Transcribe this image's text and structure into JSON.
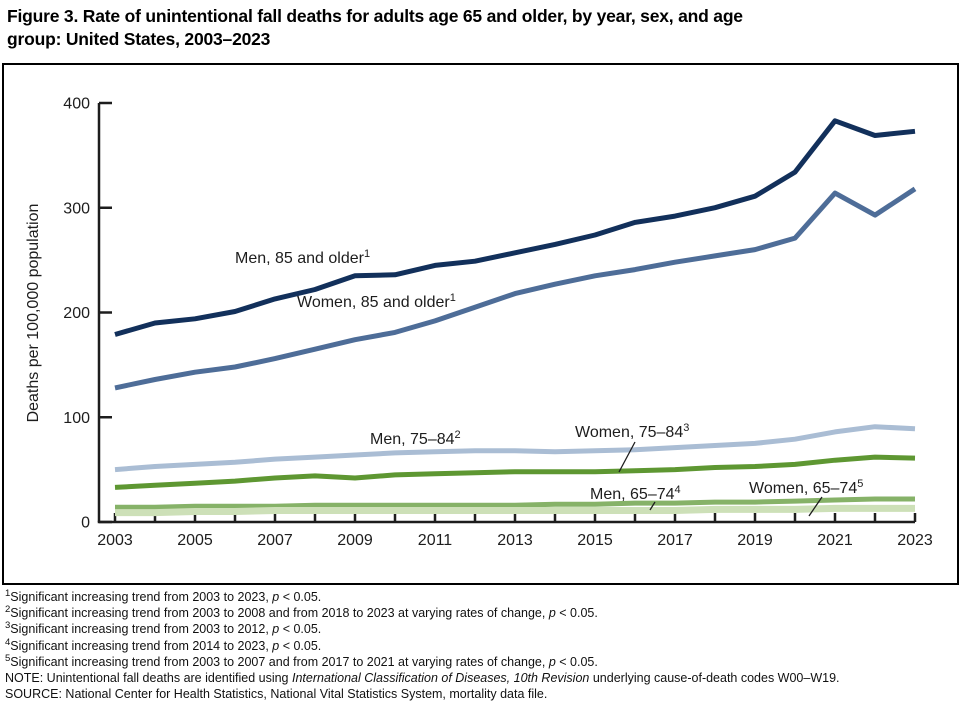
{
  "title_lines": [
    "Figure 3. Rate of unintentional fall deaths for adults age 65 and older, by year, sex, and age",
    "group: United States, 2003–2023"
  ],
  "chart_data": {
    "type": "line",
    "title": "Rate of unintentional fall deaths for adults age 65 and older, by year, sex, and age group: United States, 2003–2023",
    "xlabel": "",
    "ylabel": "Deaths per 100,000 population",
    "ylim": [
      0,
      400
    ],
    "yticks": [
      0,
      100,
      200,
      300,
      400
    ],
    "grid": false,
    "legend_position": "inline-labels",
    "x": [
      2003,
      2004,
      2005,
      2006,
      2007,
      2008,
      2009,
      2010,
      2011,
      2012,
      2013,
      2014,
      2015,
      2016,
      2017,
      2018,
      2019,
      2020,
      2021,
      2022,
      2023
    ],
    "xtick_label_years": [
      2003,
      2005,
      2007,
      2009,
      2011,
      2013,
      2015,
      2017,
      2019,
      2021,
      2023
    ],
    "axis_color": "#1d1d1d",
    "series": [
      {
        "name": "Men, 85 and older",
        "sup": "1",
        "color": "#12305b",
        "values": [
          179,
          190,
          194,
          201,
          213,
          222,
          235,
          236,
          245,
          249,
          257,
          265,
          274,
          286,
          292,
          300,
          311,
          334,
          383,
          369,
          373
        ]
      },
      {
        "name": "Women, 85 and older",
        "sup": "1",
        "color": "#4e6d98",
        "values": [
          128,
          136,
          143,
          148,
          156,
          165,
          174,
          181,
          192,
          205,
          218,
          227,
          235,
          241,
          248,
          254,
          260,
          271,
          314,
          293,
          318
        ]
      },
      {
        "name": "Men, 75–84",
        "sup": "2",
        "color": "#aabdd4",
        "values": [
          50,
          53,
          55,
          57,
          60,
          62,
          64,
          66,
          67,
          68,
          68,
          67,
          68,
          69,
          71,
          73,
          75,
          79,
          86,
          91,
          89
        ]
      },
      {
        "name": "Women, 75–84",
        "sup": "3",
        "color": "#5e9732",
        "values": [
          33,
          35,
          37,
          39,
          42,
          44,
          42,
          45,
          46,
          47,
          48,
          48,
          48,
          49,
          50,
          52,
          53,
          55,
          59,
          62,
          61
        ]
      },
      {
        "name": "Men, 65–74",
        "sup": "4",
        "color": "#86b268",
        "values": [
          14,
          14,
          15,
          15,
          15,
          16,
          16,
          16,
          16,
          16,
          16,
          17,
          17,
          18,
          18,
          19,
          19,
          20,
          21,
          22,
          22
        ]
      },
      {
        "name": "Women, 65–74",
        "sup": "5",
        "color": "#cde0b8",
        "values": [
          9,
          9,
          10,
          10,
          11,
          11,
          11,
          11,
          11,
          11,
          11,
          11,
          11,
          11,
          11,
          12,
          12,
          12,
          13,
          13,
          13
        ]
      }
    ]
  },
  "footnotes": [
    {
      "sup": "1",
      "parts": [
        {
          "t": "Significant increasing trend from 2003 to 2023, "
        },
        {
          "t": "p",
          "i": true
        },
        {
          "t": " < 0.05."
        }
      ]
    },
    {
      "sup": "2",
      "parts": [
        {
          "t": "Significant increasing trend from 2003 to 2008 and from 2018 to 2023 at varying rates of change, "
        },
        {
          "t": "p",
          "i": true
        },
        {
          "t": " < 0.05."
        }
      ]
    },
    {
      "sup": "3",
      "parts": [
        {
          "t": "Significant increasing trend from 2003 to 2012, "
        },
        {
          "t": "p",
          "i": true
        },
        {
          "t": " < 0.05."
        }
      ]
    },
    {
      "sup": "4",
      "parts": [
        {
          "t": "Significant increasing trend from 2014 to 2023, "
        },
        {
          "t": "p",
          "i": true
        },
        {
          "t": " < 0.05."
        }
      ]
    },
    {
      "sup": "5",
      "parts": [
        {
          "t": "Significant increasing trend from 2003 to 2007 and from 2017 to 2021 at varying rates of change, "
        },
        {
          "t": "p",
          "i": true
        },
        {
          "t": " < 0.05."
        }
      ]
    },
    {
      "sup": "",
      "parts": [
        {
          "t": "NOTE: Unintentional fall deaths are identified using "
        },
        {
          "t": "International Classification of Diseases, 10th Revision",
          "i": true
        },
        {
          "t": " underlying cause-of-death codes W00–W19."
        }
      ]
    },
    {
      "sup": "",
      "parts": [
        {
          "t": "SOURCE: National Center for Health Statistics, National Vital Statistics System, mortality data file."
        }
      ]
    }
  ]
}
